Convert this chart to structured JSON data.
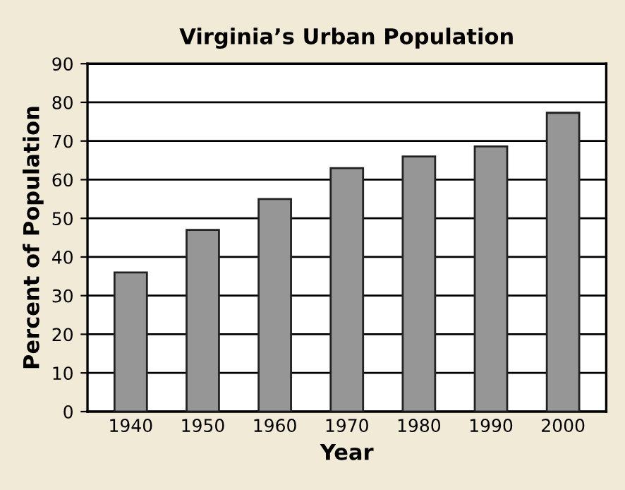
{
  "chart_data": {
    "type": "bar",
    "title": "Virginia’s Urban Population",
    "xlabel": "Year",
    "ylabel": "Percent of Population",
    "categories": [
      "1940",
      "1950",
      "1960",
      "1970",
      "1980",
      "1990",
      "2000"
    ],
    "values": [
      36,
      47,
      55,
      63,
      66,
      68.6,
      77.3
    ],
    "color": "#969696",
    "ylim": [
      0,
      90
    ],
    "yticks": [
      0,
      10,
      20,
      30,
      40,
      50,
      60,
      70,
      80,
      90
    ],
    "grid": "y",
    "legend": false
  }
}
